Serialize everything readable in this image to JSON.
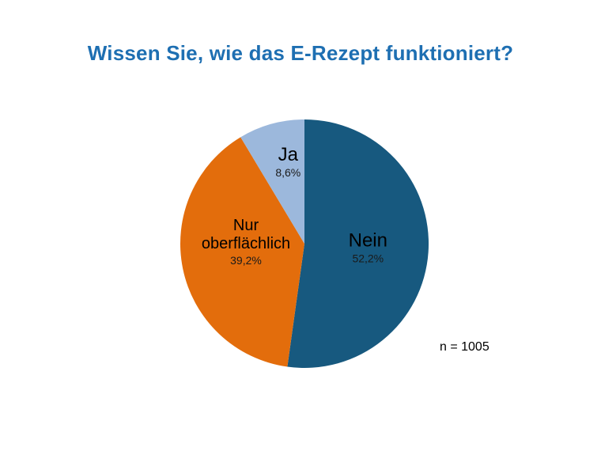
{
  "slide": {
    "title": "Wissen Sie, wie das E-Rezept funktioniert?",
    "note": "n = 1005"
  },
  "chart_data": {
    "type": "pie",
    "title": "Wissen Sie, wie das E-Rezept funktioniert?",
    "n_label": "n = 1005",
    "direction": "clockwise",
    "start_angle_deg": 0,
    "legend": "none",
    "labels_inside": true,
    "slices": [
      {
        "label": "Nein",
        "label_lines": [
          "Nein"
        ],
        "value": 52.2,
        "pct_label": "52,2%",
        "color": "#17597f"
      },
      {
        "label": "Nur oberflächlich",
        "label_lines": [
          "Nur",
          "oberflächlich"
        ],
        "value": 39.2,
        "pct_label": "39,2%",
        "color": "#e36d0c"
      },
      {
        "label": "Ja",
        "label_lines": [
          "Ja"
        ],
        "value": 8.6,
        "pct_label": "8,6%",
        "color": "#9cb8dc"
      }
    ]
  }
}
